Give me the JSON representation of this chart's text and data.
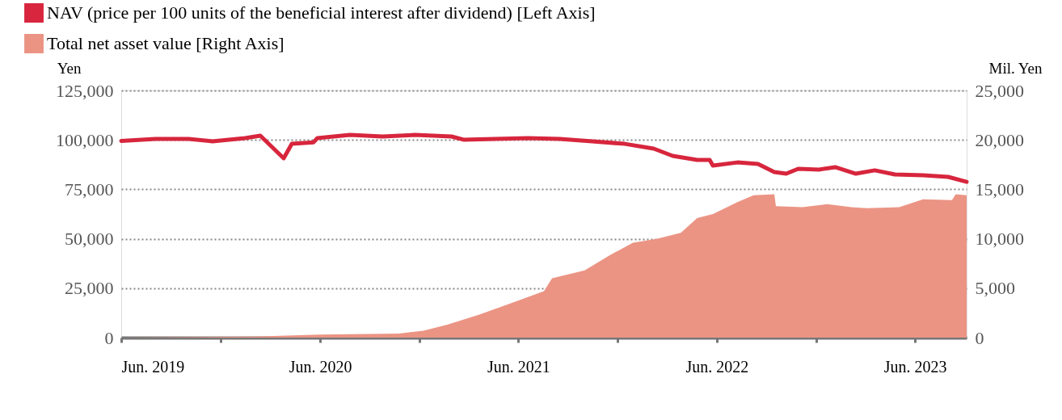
{
  "chart_data": {
    "type": "line",
    "legend": "top left",
    "grid": "y",
    "ylabel": "Yen",
    "y2label": "Mil. Yen",
    "xlim": [
      "2019-06-01",
      "2023-09-04"
    ],
    "xticks": [
      {
        "value": "2019-06-01",
        "label": "Jun. 2019"
      },
      {
        "value": "2019-12-01",
        "label": null
      },
      {
        "value": "2020-06-01",
        "label": "Jun. 2020"
      },
      {
        "value": "2020-12-01",
        "label": null
      },
      {
        "value": "2021-06-01",
        "label": "Jun. 2021"
      },
      {
        "value": "2021-12-01",
        "label": null
      },
      {
        "value": "2022-06-01",
        "label": "Jun. 2022"
      },
      {
        "value": "2022-12-01",
        "label": null
      },
      {
        "value": "2023-06-01",
        "label": "Jun. 2023"
      }
    ],
    "ylim": [
      0,
      125000
    ],
    "yticks": [
      {
        "value": 0,
        "label": "0"
      },
      {
        "value": 25000,
        "label": "25,000"
      },
      {
        "value": 50000,
        "label": "50,000"
      },
      {
        "value": 75000,
        "label": "75,000"
      },
      {
        "value": 100000,
        "label": "100,000"
      },
      {
        "value": 125000,
        "label": "125,000"
      }
    ],
    "y2lim": [
      0,
      25000
    ],
    "y2ticks": [
      {
        "value": 0,
        "label": "0"
      },
      {
        "value": 5000,
        "label": "5,000"
      },
      {
        "value": 10000,
        "label": "10,000"
      },
      {
        "value": 15000,
        "label": "15,000"
      },
      {
        "value": 20000,
        "label": "20,000"
      },
      {
        "value": 25000,
        "label": "25,000"
      }
    ],
    "series": [
      {
        "name": "NAV (price per 100 units of the beneficial interest after dividend) [Left Axis]",
        "color": "#d7263d",
        "x": [
          "2019-06-01",
          "2019-08-03",
          "2019-10-03",
          "2019-11-16",
          "2020-01-15",
          "2020-02-12",
          "2020-03-26",
          "2020-04-10",
          "2020-05-20",
          "2020-05-27",
          "2020-07-26",
          "2020-09-24",
          "2020-11-23",
          "2021-01-29",
          "2021-02-20",
          "2021-04-19",
          "2021-06-18",
          "2021-08-16",
          "2021-10-15",
          "2021-12-14",
          "2022-02-05",
          "2022-03-12",
          "2022-04-26",
          "2022-05-19",
          "2022-05-25",
          "2022-07-09",
          "2022-08-16",
          "2022-09-15",
          "2022-10-07",
          "2022-10-29",
          "2022-12-06",
          "2023-01-05",
          "2023-02-12",
          "2023-03-19",
          "2023-04-25",
          "2023-06-16",
          "2023-08-01",
          "2023-09-04"
        ],
        "values": [
          99500,
          100500,
          100500,
          99300,
          100900,
          102100,
          90700,
          98000,
          98800,
          100900,
          102500,
          101700,
          102500,
          101700,
          100100,
          100500,
          100900,
          100500,
          99300,
          98000,
          95600,
          91900,
          89900,
          89900,
          87000,
          88600,
          87800,
          83700,
          82900,
          85400,
          85000,
          86200,
          82900,
          84600,
          82500,
          82100,
          81300,
          78800
        ]
      },
      {
        "name": "Total net asset value [Right Axis]",
        "type": "area",
        "axis": "y2",
        "color": "#eb9484",
        "x": [
          "2019-06-01",
          "2020-01-30",
          "2020-06-01",
          "2020-10-24",
          "2020-12-08",
          "2021-01-21",
          "2021-03-20",
          "2021-05-19",
          "2021-07-18",
          "2021-08-02",
          "2021-10-01",
          "2021-11-15",
          "2021-12-29",
          "2022-02-12",
          "2022-03-27",
          "2022-04-26",
          "2022-05-25",
          "2022-07-09",
          "2022-08-08",
          "2022-09-15",
          "2022-09-18",
          "2022-11-06",
          "2022-12-21",
          "2023-02-04",
          "2023-03-04",
          "2023-05-03",
          "2023-06-16",
          "2023-08-08",
          "2023-08-15",
          "2023-09-04"
        ],
        "values": [
          0,
          100,
          300,
          400,
          700,
          1300,
          2300,
          3500,
          4700,
          6000,
          6800,
          8300,
          9600,
          10000,
          10600,
          12100,
          12500,
          13700,
          14400,
          14500,
          13300,
          13200,
          13500,
          13200,
          13100,
          13200,
          14000,
          13900,
          14500,
          14400
        ]
      }
    ]
  }
}
